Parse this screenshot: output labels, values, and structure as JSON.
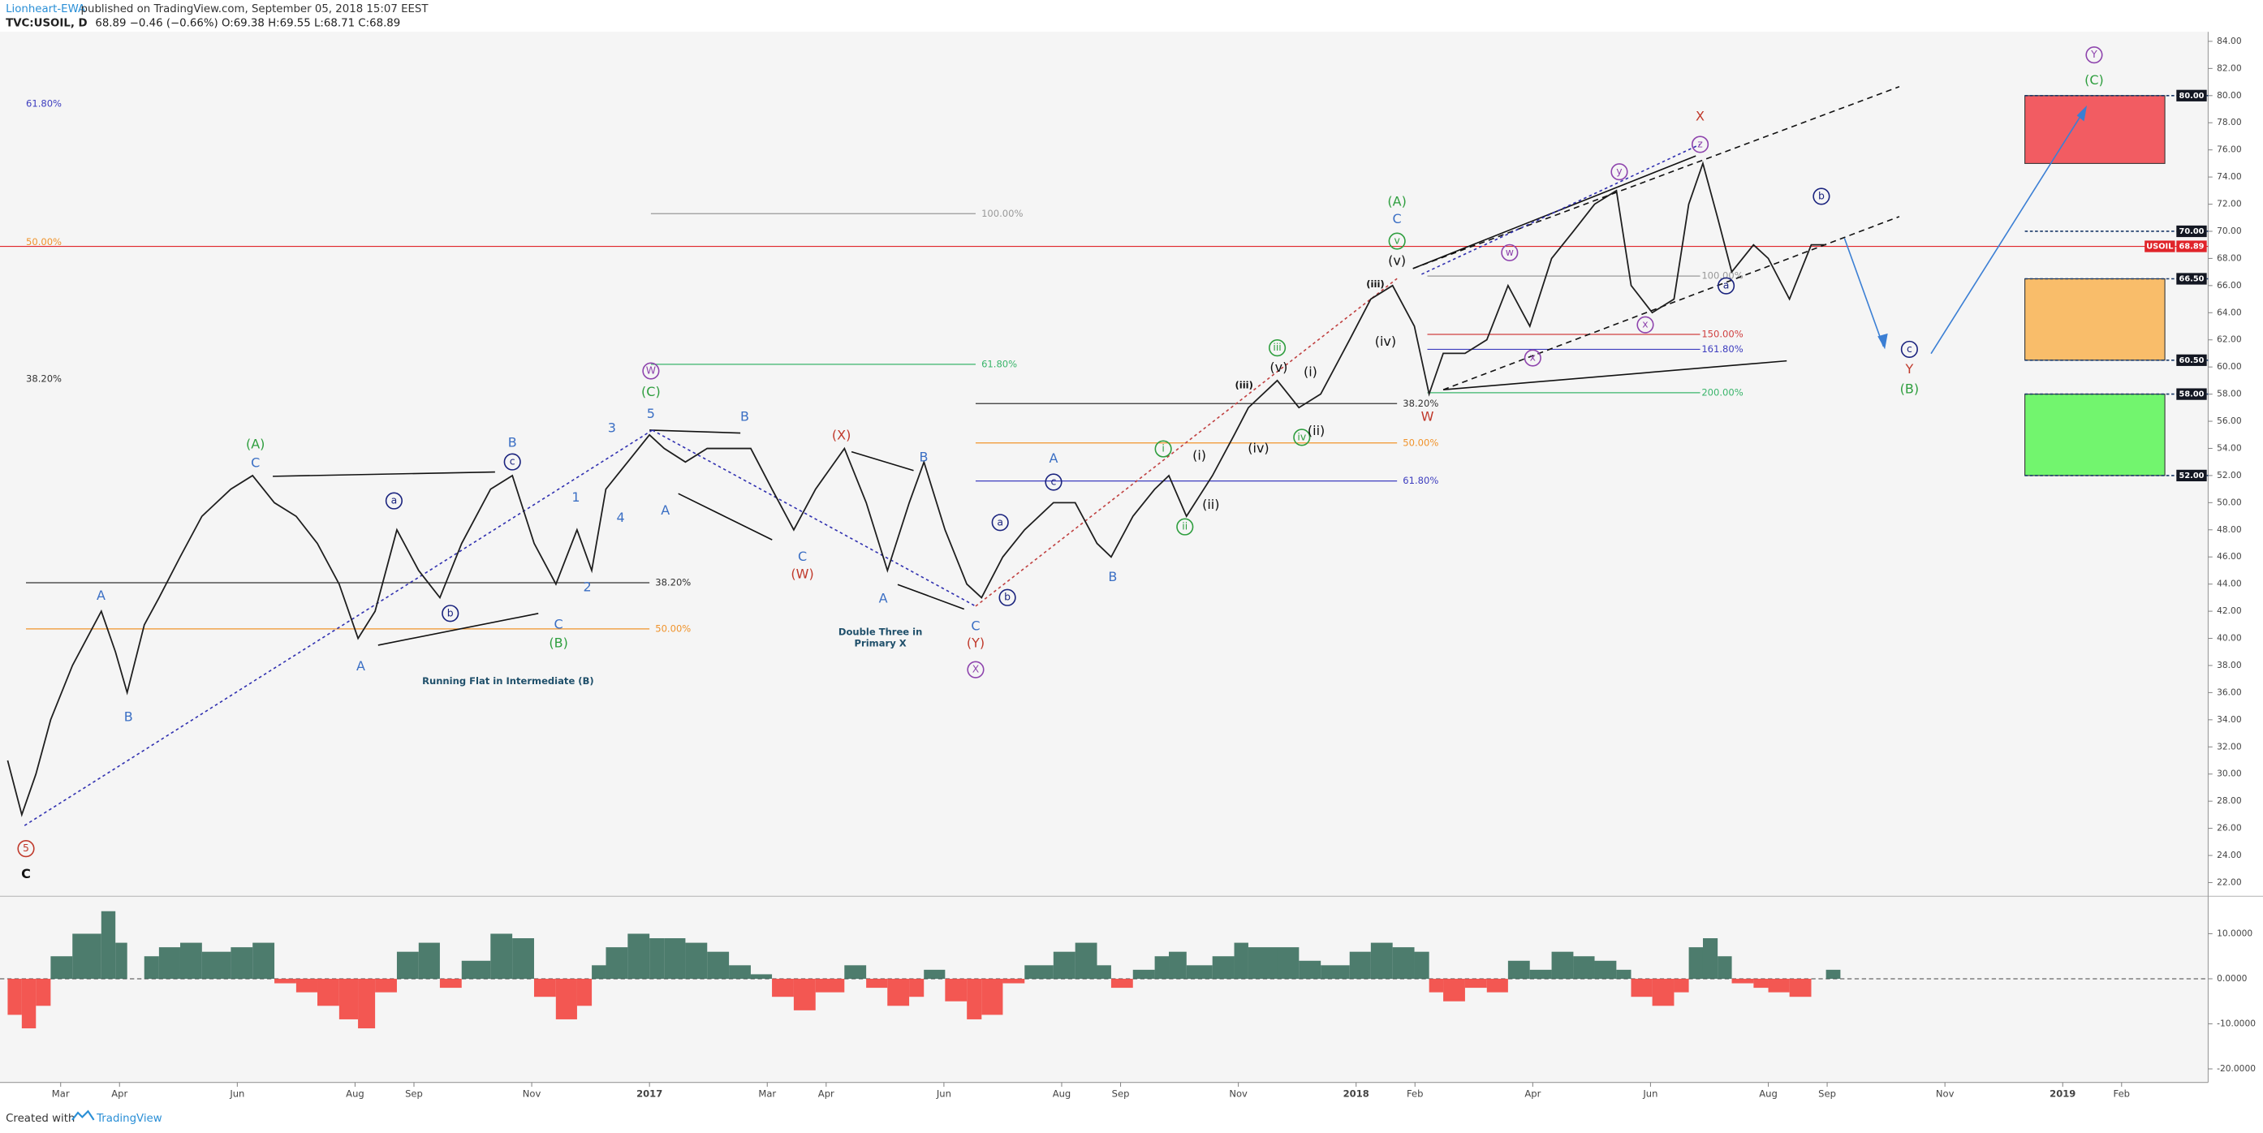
{
  "header": {
    "author": "Lionheart-EWA",
    "published": "published on TradingView.com, September 05, 2018 15:07 EEST",
    "symbol": "TVC:USOIL, D",
    "quote": "68.89 −0.46 (−0.66%) O:69.38 H:69.55 L:68.71 C:68.89"
  },
  "footer": {
    "created": "Created with",
    "brand": "TradingView"
  },
  "chart_data": {
    "type": "line",
    "x": [
      1.1,
      1.34,
      1.58,
      1.83,
      2.2,
      2.69,
      2.93,
      3.13,
      3.42,
      3.67,
      4.03,
      4.4,
      4.89,
      5.26,
      5.63,
      6.0,
      6.36,
      6.73,
      7.05,
      7.34,
      7.71,
      8.08,
      8.44,
      8.81,
      9.3,
      9.67,
      10.04,
      10.41,
      10.77,
      11.02,
      11.26,
      11.63,
      12.0,
      12.25,
      12.61,
      12.98,
      13.35,
      13.72,
      14.08,
      14.45,
      14.82,
      15.31,
      15.68,
      16.04,
      16.41,
      16.66,
      17.02,
      17.39,
      17.64,
      18.0,
      18.37,
      18.86,
      19.23,
      19.6,
      19.84,
      20.21,
      20.58,
      20.82,
      21.12,
      21.56,
      21.93,
      22.17,
      22.66,
      23.03,
      23.4,
      23.89,
      24.25,
      24.62,
      24.99,
      25.24,
      25.48,
      25.85,
      26.22,
      26.58,
      26.95,
      27.32,
      27.69,
      28.05,
      28.42,
      28.67,
      29.03,
      29.4,
      29.65,
      29.89,
      30.14,
      30.38,
      30.75,
      31.0,
      31.36,
      31.73,
      31.98
    ],
    "series": [
      {
        "name": "USOIL",
        "color": "#1e1e1e",
        "values": [
          31,
          27,
          30,
          34,
          38,
          42,
          39,
          36,
          41,
          43,
          46,
          49,
          51,
          52,
          50,
          49,
          47,
          44,
          40,
          42,
          48,
          45,
          43,
          47,
          51,
          52,
          47,
          44,
          48,
          45,
          51,
          53,
          55,
          54,
          53,
          54,
          54,
          54,
          51,
          48,
          51,
          54,
          50,
          45,
          50,
          53,
          48,
          44,
          43,
          46,
          48,
          50,
          50,
          47,
          46,
          49,
          51,
          52,
          49,
          52,
          55,
          57,
          59,
          57,
          58,
          62,
          65,
          66,
          63,
          58,
          61,
          61,
          62,
          66,
          63,
          68,
          70,
          72,
          73,
          66,
          64,
          65,
          72,
          75,
          71,
          67,
          69,
          68,
          65,
          69,
          69
        ]
      }
    ],
    "xlim": [
      0.97,
      38.47
    ],
    "xticks": [
      {
        "value": 2,
        "label": "Mar"
      },
      {
        "value": 3,
        "label": "Apr"
      },
      {
        "value": 5,
        "label": "Jun"
      },
      {
        "value": 7,
        "label": "Aug"
      },
      {
        "value": 8,
        "label": "Sep"
      },
      {
        "value": 10,
        "label": "Nov"
      },
      {
        "value": 12,
        "label": "2017"
      },
      {
        "value": 14,
        "label": "Mar"
      },
      {
        "value": 15,
        "label": "Apr"
      },
      {
        "value": 17,
        "label": "Jun"
      },
      {
        "value": 19,
        "label": "Aug"
      },
      {
        "value": 20,
        "label": "Sep"
      },
      {
        "value": 22,
        "label": "Nov"
      },
      {
        "value": 24,
        "label": "2018"
      },
      {
        "value": 25,
        "label": "Feb"
      },
      {
        "value": 27,
        "label": "Apr"
      },
      {
        "value": 29,
        "label": "Jun"
      },
      {
        "value": 31,
        "label": "Aug"
      },
      {
        "value": 32,
        "label": "Sep"
      },
      {
        "value": 34,
        "label": "Nov"
      },
      {
        "value": 36,
        "label": "2019"
      },
      {
        "value": 37,
        "label": "Feb"
      }
    ],
    "ylim": [
      21.1,
      84.7
    ],
    "yticks": [
      {
        "value": 22,
        "label": "22.00"
      },
      {
        "value": 24,
        "label": "24.00"
      },
      {
        "value": 26,
        "label": "26.00"
      },
      {
        "value": 28,
        "label": "28.00"
      },
      {
        "value": 30,
        "label": "30.00"
      },
      {
        "value": 32,
        "label": "32.00"
      },
      {
        "value": 34,
        "label": "34.00"
      },
      {
        "value": 36,
        "label": "36.00"
      },
      {
        "value": 38,
        "label": "38.00"
      },
      {
        "value": 40,
        "label": "40.00"
      },
      {
        "value": 42,
        "label": "42.00"
      },
      {
        "value": 44,
        "label": "44.00"
      },
      {
        "value": 46,
        "label": "46.00"
      },
      {
        "value": 48,
        "label": "48.00"
      },
      {
        "value": 50,
        "label": "50.00"
      },
      {
        "value": 52,
        "label": "52.00"
      },
      {
        "value": 54,
        "label": "54.00"
      },
      {
        "value": 56,
        "label": "56.00"
      },
      {
        "value": 58,
        "label": "58.00"
      },
      {
        "value": 60,
        "label": "60.00"
      },
      {
        "value": 62,
        "label": "62.00"
      },
      {
        "value": 64,
        "label": "64.00"
      },
      {
        "value": 66,
        "label": "66.00"
      },
      {
        "value": 68,
        "label": "68.00"
      },
      {
        "value": 70,
        "label": "70.00"
      },
      {
        "value": 72,
        "label": "72.00"
      },
      {
        "value": 74,
        "label": "74.00"
      },
      {
        "value": 76,
        "label": "76.00"
      },
      {
        "value": 78,
        "label": "78.00"
      },
      {
        "value": 80,
        "label": "80.00"
      },
      {
        "value": 82,
        "label": "82.00"
      },
      {
        "value": 84,
        "label": "84.00"
      }
    ],
    "levels": [
      {
        "value": 80,
        "label": "80.00",
        "color": "#131722"
      },
      {
        "value": 70,
        "label": "70.00",
        "color": "#131722"
      },
      {
        "value": 68.89,
        "label": "68.89",
        "color": "#e0242a"
      },
      {
        "value": 66.5,
        "label": "66.50",
        "color": "#131722"
      },
      {
        "value": 60.5,
        "label": "60.50",
        "color": "#131722"
      },
      {
        "value": 58,
        "label": "58.00",
        "color": "#131722"
      },
      {
        "value": 52,
        "label": "52.00",
        "color": "#131722"
      }
    ],
    "zones": [
      {
        "low": 75,
        "high": 80,
        "color": "#f25c62"
      },
      {
        "low": 60.5,
        "high": 66.5,
        "color": "#f9bd6a"
      },
      {
        "low": 52,
        "high": 58,
        "color": "#72f56e"
      }
    ],
    "fibs": [
      {
        "label": "61.80%",
        "value": 79.4,
        "color": "#3d3dbf"
      },
      {
        "label": "50.00%",
        "value": 69.2,
        "color": "#f0932b"
      },
      {
        "label": "38.20%",
        "value": 59.1,
        "color": "#333333"
      },
      {
        "label": "38.20%",
        "value": 44.1,
        "color": "#333333"
      },
      {
        "label": "50.00%",
        "value": 40.7,
        "color": "#f0932b"
      },
      {
        "label": "100.00%",
        "value": 71.3,
        "color": "#999999"
      },
      {
        "label": "61.80%",
        "value": 60.2,
        "color": "#3ab56b"
      },
      {
        "label": "50.00%",
        "value": 54.4,
        "color": "#f0932b"
      },
      {
        "label": "61.80%",
        "value": 51.6,
        "color": "#3d3dbf"
      },
      {
        "label": "38.20%",
        "value": 57.3,
        "color": "#333333"
      },
      {
        "label": "100.00%",
        "value": 66.7,
        "color": "#999999"
      },
      {
        "label": "150.00%",
        "value": 62.4,
        "color": "#d04040"
      },
      {
        "label": "161.80%",
        "value": 61.3,
        "color": "#3d3dbf"
      },
      {
        "label": "200.00%",
        "value": 58.1,
        "color": "#3ab56b"
      }
    ],
    "annotations": [
      {
        "text": "5",
        "color": "#c0392b",
        "circled": true
      },
      {
        "text": "C",
        "color": "#111111"
      },
      {
        "text": "A",
        "color": "#3b6fc4"
      },
      {
        "text": "B",
        "color": "#3b6fc4"
      },
      {
        "text": "(A)",
        "color": "#2e9e3e"
      },
      {
        "text": "C",
        "color": "#3b6fc4"
      },
      {
        "text": "a",
        "color": "#1a237e",
        "circled": true
      },
      {
        "text": "b",
        "color": "#1a237e",
        "circled": true
      },
      {
        "text": "c",
        "color": "#1a237e",
        "circled": true
      },
      {
        "text": "B",
        "color": "#3b6fc4"
      },
      {
        "text": "A",
        "color": "#3b6fc4"
      },
      {
        "text": "C",
        "color": "#3b6fc4"
      },
      {
        "text": "(B)",
        "color": "#2e9e3e"
      },
      {
        "text": "1",
        "color": "#3b6fc4"
      },
      {
        "text": "2",
        "color": "#3b6fc4"
      },
      {
        "text": "3",
        "color": "#3b6fc4"
      },
      {
        "text": "4",
        "color": "#3b6fc4"
      },
      {
        "text": "5",
        "color": "#3b6fc4"
      },
      {
        "text": "W",
        "color": "#8e44ad",
        "circled": true
      },
      {
        "text": "(C)",
        "color": "#2e9e3e"
      },
      {
        "text": "A",
        "color": "#3b6fc4"
      },
      {
        "text": "B",
        "color": "#3b6fc4"
      },
      {
        "text": "(X)",
        "color": "#c0392b"
      },
      {
        "text": "C",
        "color": "#3b6fc4"
      },
      {
        "text": "(W)",
        "color": "#c0392b"
      },
      {
        "text": "B",
        "color": "#3b6fc4"
      },
      {
        "text": "A",
        "color": "#3b6fc4"
      },
      {
        "text": "C",
        "color": "#3b6fc4"
      },
      {
        "text": "(Y)",
        "color": "#c0392b"
      },
      {
        "text": "X",
        "color": "#8e44ad",
        "circled": true
      },
      {
        "text": "Double Three in",
        "color": "#1f4f6a"
      },
      {
        "text": "Primary X",
        "color": "#1f4f6a"
      },
      {
        "text": "Running Flat in  Intermediate (B)",
        "color": "#1f4f6a"
      },
      {
        "text": "a",
        "color": "#1a237e",
        "circled": true
      },
      {
        "text": "b",
        "color": "#1a237e",
        "circled": true
      },
      {
        "text": "c",
        "color": "#1a237e",
        "circled": true
      },
      {
        "text": "A",
        "color": "#3b6fc4"
      },
      {
        "text": "B",
        "color": "#3b6fc4"
      },
      {
        "text": "i",
        "color": "#2e9e3e",
        "circled": true
      },
      {
        "text": "ii",
        "color": "#2e9e3e",
        "circled": true
      },
      {
        "text": "(i)",
        "color": "#111111"
      },
      {
        "text": "(ii)",
        "color": "#111111"
      },
      {
        "text": "(iii)",
        "color": "#111111"
      },
      {
        "text": "(iv)",
        "color": "#111111"
      },
      {
        "text": "iii",
        "color": "#2e9e3e",
        "circled": true
      },
      {
        "text": "(v)",
        "color": "#111111"
      },
      {
        "text": "(i)",
        "color": "#111111"
      },
      {
        "text": "iv",
        "color": "#2e9e3e",
        "circled": true
      },
      {
        "text": "(ii)",
        "color": "#111111"
      },
      {
        "text": "(iii)",
        "color": "#111111"
      },
      {
        "text": "(iv)",
        "color": "#111111"
      },
      {
        "text": "(v)",
        "color": "#111111"
      },
      {
        "text": "v",
        "color": "#2e9e3e",
        "circled": true
      },
      {
        "text": "C",
        "color": "#3b6fc4"
      },
      {
        "text": "(A)",
        "color": "#2e9e3e"
      },
      {
        "text": "W",
        "color": "#c0392b"
      },
      {
        "text": "w",
        "color": "#8e44ad",
        "circled": true
      },
      {
        "text": "x",
        "color": "#8e44ad",
        "circled": true
      },
      {
        "text": "y",
        "color": "#8e44ad",
        "circled": true
      },
      {
        "text": "x",
        "color": "#8e44ad",
        "circled": true
      },
      {
        "text": "z",
        "color": "#8e44ad",
        "circled": true
      },
      {
        "text": "X",
        "color": "#c0392b"
      },
      {
        "text": "a",
        "color": "#1a237e",
        "circled": true
      },
      {
        "text": "b",
        "color": "#1a237e",
        "circled": true
      },
      {
        "text": "c",
        "color": "#1a237e",
        "circled": true
      },
      {
        "text": "Y",
        "color": "#c0392b"
      },
      {
        "text": "(B)",
        "color": "#2e9e3e"
      },
      {
        "text": "(C)",
        "color": "#2e9e3e"
      },
      {
        "text": "Y",
        "color": "#8e44ad",
        "circled": true
      }
    ],
    "oscillator": {
      "type": "bar",
      "positive_color": "#2f6655",
      "negative_color": "#f23b35",
      "values": [
        -8,
        -11,
        -6,
        5,
        10,
        15,
        8,
        0,
        5,
        7,
        8,
        6,
        7,
        8,
        -1,
        -3,
        -6,
        -9,
        -11,
        -3,
        6,
        8,
        -2,
        4,
        10,
        9,
        -4,
        -9,
        -6,
        3,
        7,
        10,
        9,
        9,
        8,
        6,
        3,
        1,
        -4,
        -7,
        -3,
        3,
        -2,
        -6,
        -4,
        2,
        -5,
        -9,
        -8,
        -1,
        3,
        6,
        8,
        3,
        -2,
        2,
        5,
        6,
        3,
        5,
        8,
        7,
        7,
        4,
        3,
        6,
        8,
        7,
        6,
        -3,
        -5,
        -2,
        -3,
        4,
        2,
        6,
        5,
        4,
        2,
        -4,
        -6,
        -3,
        7,
        9,
        5,
        -1,
        -2,
        -3,
        -4,
        0,
        2
      ],
      "ylim": [
        -23,
        18
      ],
      "yticks": [
        {
          "value": 10,
          "label": "10.0000"
        },
        {
          "value": 0,
          "label": "0.0000"
        },
        {
          "value": -10,
          "label": "-10.0000"
        },
        {
          "value": -20,
          "label": "-20.0000"
        }
      ]
    }
  }
}
